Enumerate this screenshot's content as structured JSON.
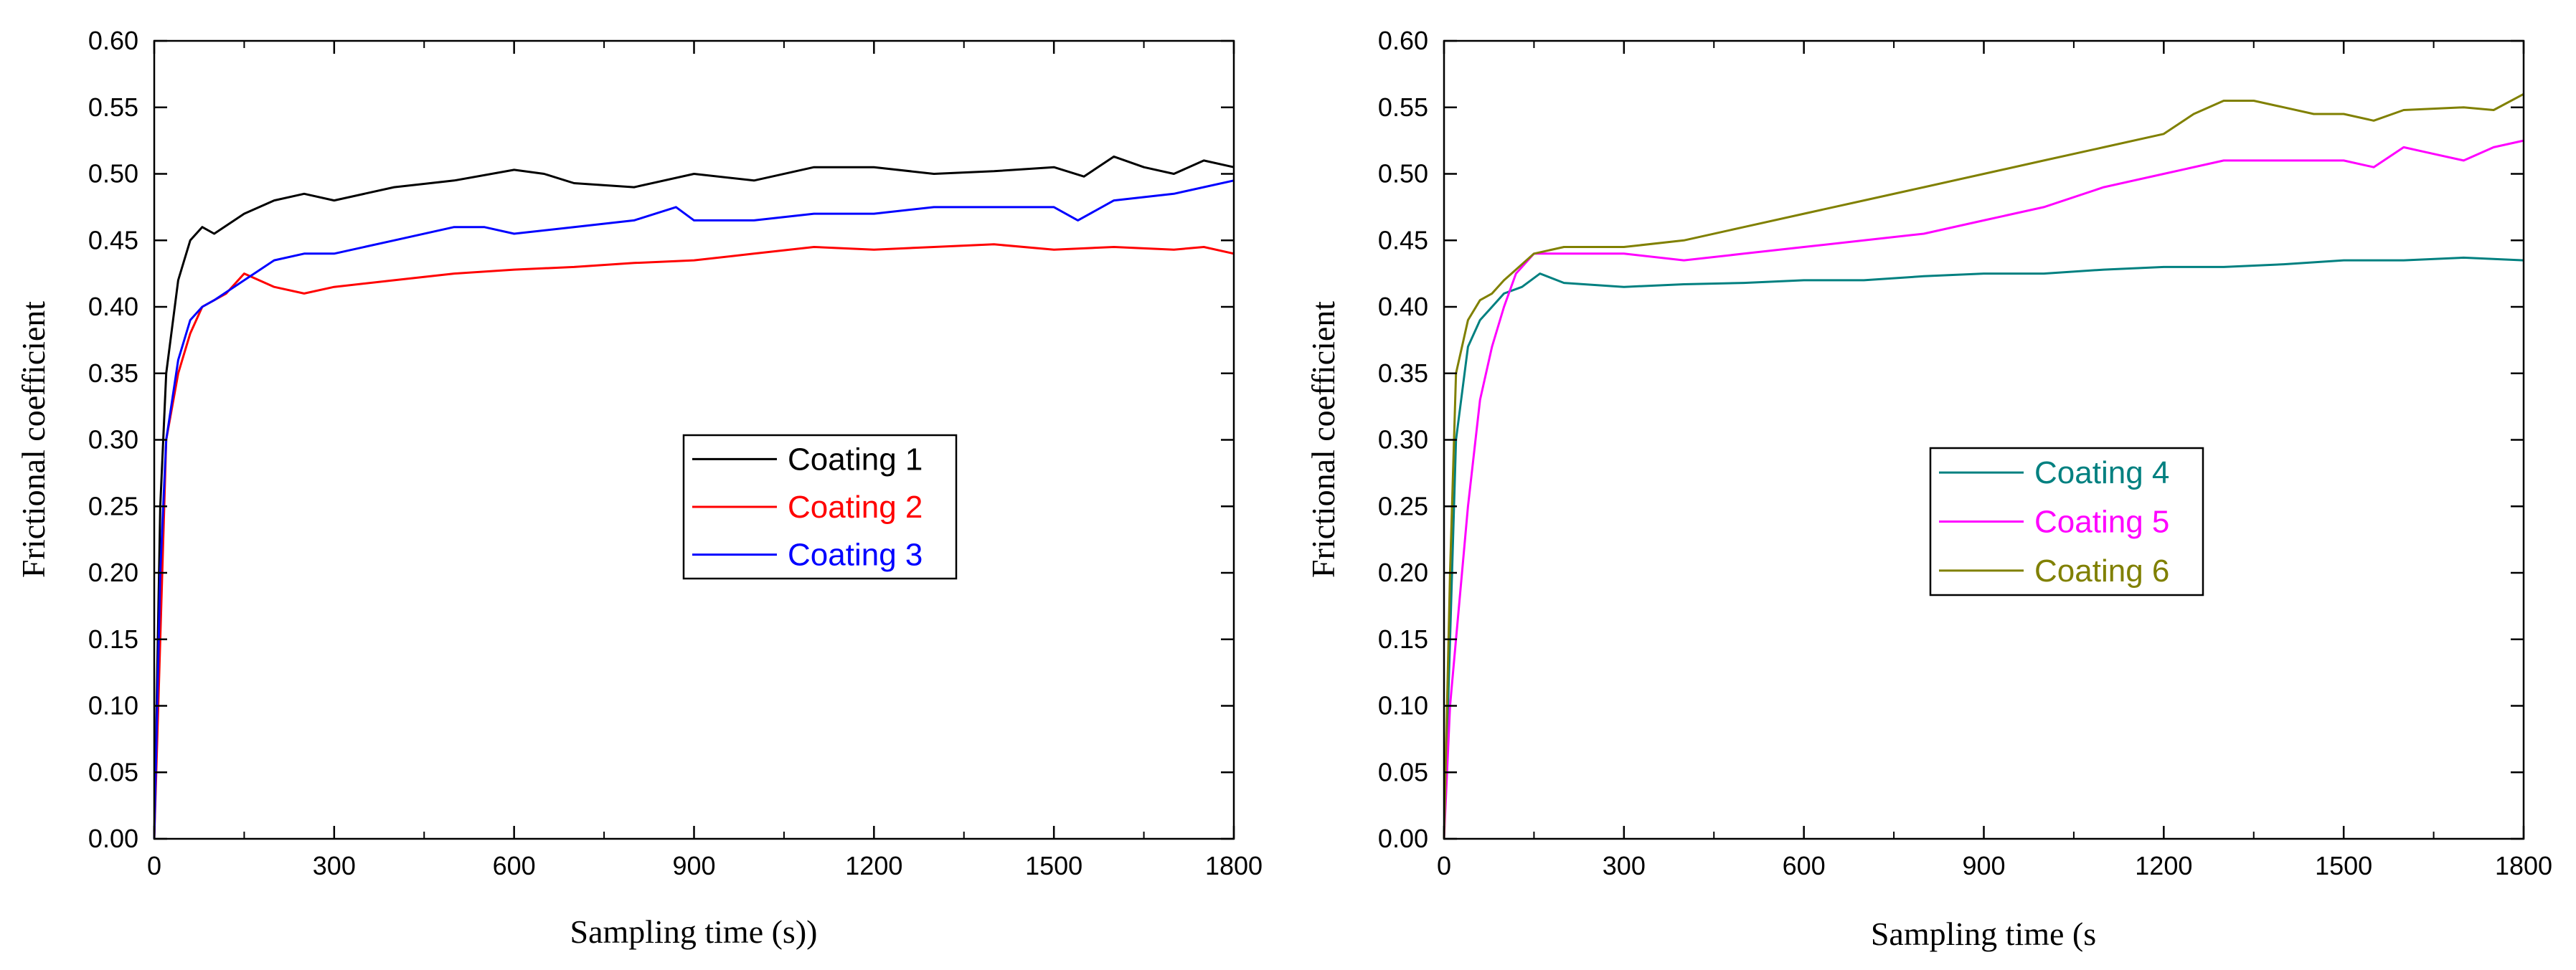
{
  "chart_data": [
    {
      "type": "line",
      "xlabel": "Sampling time (s))",
      "ylabel": "Frictional coefficient",
      "xlim": [
        0,
        1800
      ],
      "ylim": [
        0,
        0.6
      ],
      "xticks": [
        "0",
        "300",
        "600",
        "900",
        "1200",
        "1500",
        "1800"
      ],
      "yticks": [
        "0.00",
        "0.05",
        "0.10",
        "0.15",
        "0.20",
        "0.25",
        "0.30",
        "0.35",
        "0.40",
        "0.45",
        "0.50",
        "0.55",
        "0.60"
      ],
      "legend_position": "center-right",
      "grid": false,
      "series": [
        {
          "name": "Coating 1",
          "color": "#000000",
          "x": [
            0,
            10,
            20,
            40,
            60,
            80,
            100,
            150,
            200,
            250,
            300,
            400,
            500,
            600,
            650,
            700,
            800,
            900,
            1000,
            1100,
            1200,
            1300,
            1400,
            1500,
            1550,
            1600,
            1650,
            1700,
            1750,
            1800
          ],
          "y": [
            0.0,
            0.25,
            0.35,
            0.42,
            0.45,
            0.46,
            0.455,
            0.47,
            0.48,
            0.485,
            0.48,
            0.49,
            0.495,
            0.503,
            0.5,
            0.493,
            0.49,
            0.5,
            0.495,
            0.505,
            0.505,
            0.5,
            0.502,
            0.505,
            0.498,
            0.513,
            0.505,
            0.5,
            0.51,
            0.505
          ]
        },
        {
          "name": "Coating 2",
          "color": "#ff0000",
          "x": [
            0,
            10,
            20,
            40,
            60,
            80,
            100,
            120,
            150,
            200,
            250,
            300,
            400,
            500,
            600,
            700,
            800,
            900,
            1000,
            1100,
            1200,
            1300,
            1400,
            1500,
            1600,
            1700,
            1750,
            1800
          ],
          "y": [
            0.0,
            0.15,
            0.3,
            0.35,
            0.38,
            0.4,
            0.405,
            0.41,
            0.425,
            0.415,
            0.41,
            0.415,
            0.42,
            0.425,
            0.428,
            0.43,
            0.433,
            0.435,
            0.44,
            0.445,
            0.443,
            0.445,
            0.447,
            0.443,
            0.445,
            0.443,
            0.445,
            0.44
          ]
        },
        {
          "name": "Coating 3",
          "color": "#0000ff",
          "x": [
            0,
            10,
            20,
            40,
            60,
            80,
            100,
            150,
            200,
            250,
            300,
            400,
            500,
            550,
            600,
            700,
            800,
            870,
            900,
            1000,
            1100,
            1200,
            1300,
            1400,
            1500,
            1540,
            1600,
            1700,
            1800
          ],
          "y": [
            0.0,
            0.2,
            0.3,
            0.36,
            0.39,
            0.4,
            0.405,
            0.42,
            0.435,
            0.44,
            0.44,
            0.45,
            0.46,
            0.46,
            0.455,
            0.46,
            0.465,
            0.475,
            0.465,
            0.465,
            0.47,
            0.47,
            0.475,
            0.475,
            0.475,
            0.465,
            0.48,
            0.485,
            0.495
          ]
        }
      ]
    },
    {
      "type": "line",
      "xlabel": "Sampling time (s",
      "ylabel": "Frictional coefficient",
      "xlim": [
        0,
        1800
      ],
      "ylim": [
        0,
        0.6
      ],
      "xticks": [
        "0",
        "300",
        "600",
        "900",
        "1200",
        "1500",
        "1800"
      ],
      "yticks": [
        "0.00",
        "0.05",
        "0.10",
        "0.15",
        "0.20",
        "0.25",
        "0.30",
        "0.35",
        "0.40",
        "0.45",
        "0.50",
        "0.55",
        "0.60"
      ],
      "legend_position": "center-right",
      "grid": false,
      "series": [
        {
          "name": "Coating 4",
          "color": "#008080",
          "x": [
            0,
            10,
            20,
            40,
            60,
            80,
            100,
            130,
            160,
            200,
            300,
            400,
            500,
            600,
            700,
            800,
            900,
            1000,
            1100,
            1200,
            1300,
            1400,
            1500,
            1600,
            1700,
            1800
          ],
          "y": [
            0.0,
            0.15,
            0.3,
            0.37,
            0.39,
            0.4,
            0.41,
            0.415,
            0.425,
            0.418,
            0.415,
            0.417,
            0.418,
            0.42,
            0.42,
            0.423,
            0.425,
            0.425,
            0.428,
            0.43,
            0.43,
            0.432,
            0.435,
            0.435,
            0.437,
            0.435
          ]
        },
        {
          "name": "Coating 5",
          "color": "#ff00ff",
          "x": [
            0,
            10,
            20,
            40,
            60,
            80,
            100,
            120,
            150,
            200,
            300,
            400,
            500,
            600,
            700,
            800,
            900,
            1000,
            1100,
            1200,
            1300,
            1400,
            1500,
            1550,
            1600,
            1650,
            1700,
            1750,
            1800
          ],
          "y": [
            0.0,
            0.1,
            0.15,
            0.25,
            0.33,
            0.37,
            0.4,
            0.425,
            0.44,
            0.44,
            0.44,
            0.435,
            0.44,
            0.445,
            0.45,
            0.455,
            0.465,
            0.475,
            0.49,
            0.5,
            0.51,
            0.51,
            0.51,
            0.505,
            0.52,
            0.515,
            0.51,
            0.52,
            0.525
          ]
        },
        {
          "name": "Coating 6",
          "color": "#808000",
          "x": [
            0,
            10,
            20,
            40,
            60,
            80,
            100,
            150,
            200,
            300,
            400,
            500,
            600,
            700,
            800,
            900,
            1000,
            1100,
            1200,
            1250,
            1300,
            1350,
            1400,
            1450,
            1500,
            1550,
            1600,
            1700,
            1750,
            1800
          ],
          "y": [
            0.0,
            0.2,
            0.35,
            0.39,
            0.405,
            0.41,
            0.42,
            0.44,
            0.445,
            0.445,
            0.45,
            0.46,
            0.47,
            0.48,
            0.49,
            0.5,
            0.51,
            0.52,
            0.53,
            0.545,
            0.555,
            0.555,
            0.55,
            0.545,
            0.545,
            0.54,
            0.548,
            0.55,
            0.548,
            0.56
          ]
        }
      ]
    }
  ]
}
